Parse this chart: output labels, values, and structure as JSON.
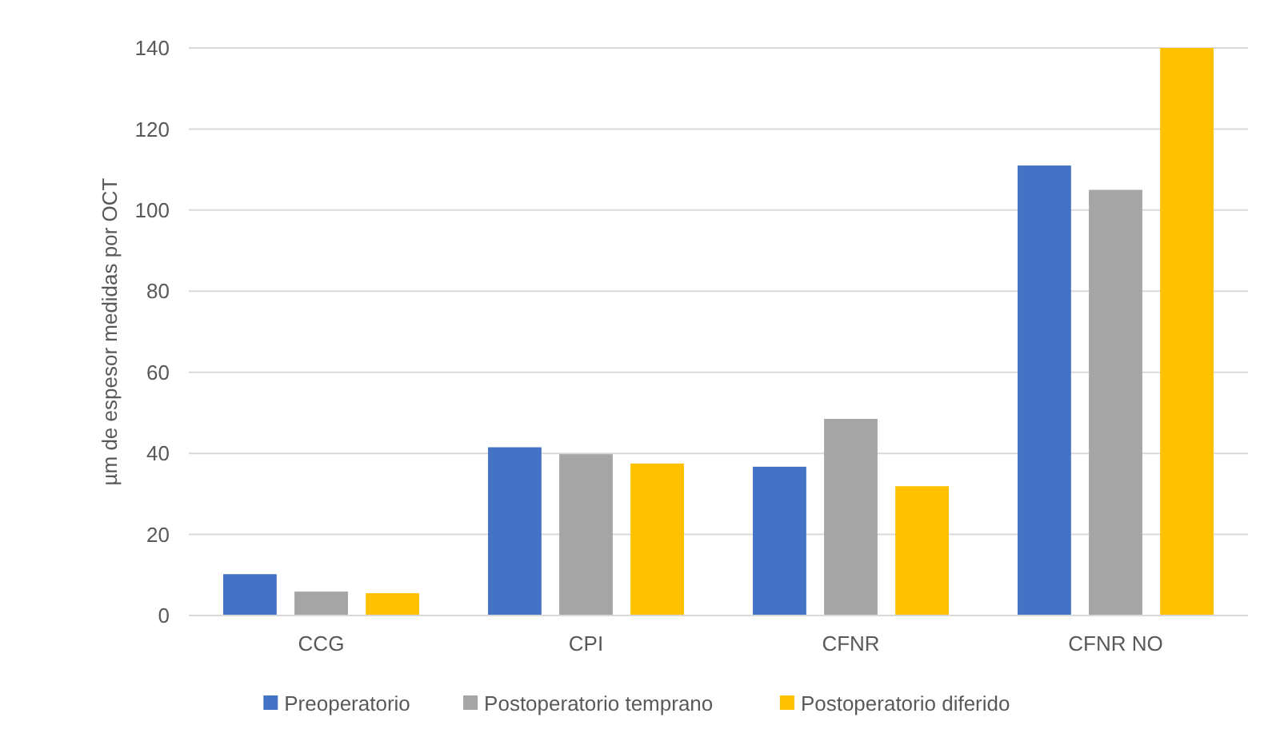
{
  "chart_data": {
    "type": "bar",
    "ylabel": "µm de espesor medidas por OCT",
    "categories": [
      "CCG",
      "CPI",
      "CFNR",
      "CFNR NO"
    ],
    "series": [
      {
        "name": "Preoperatorio",
        "color": "#4472c4",
        "values": [
          10.2,
          41.5,
          36.7,
          111
        ]
      },
      {
        "name": "Postoperatorio temprano",
        "color": "#a5a5a5",
        "values": [
          5.9,
          39.8,
          48.5,
          105
        ]
      },
      {
        "name": "Postoperatorio diferido",
        "color": "#ffc000",
        "values": [
          5.5,
          37.5,
          31.9,
          140
        ]
      }
    ],
    "ylim": [
      0,
      140
    ],
    "yticks": [
      0,
      20,
      40,
      60,
      80,
      100,
      120,
      140
    ],
    "grid": "y",
    "legend": "bottom"
  }
}
